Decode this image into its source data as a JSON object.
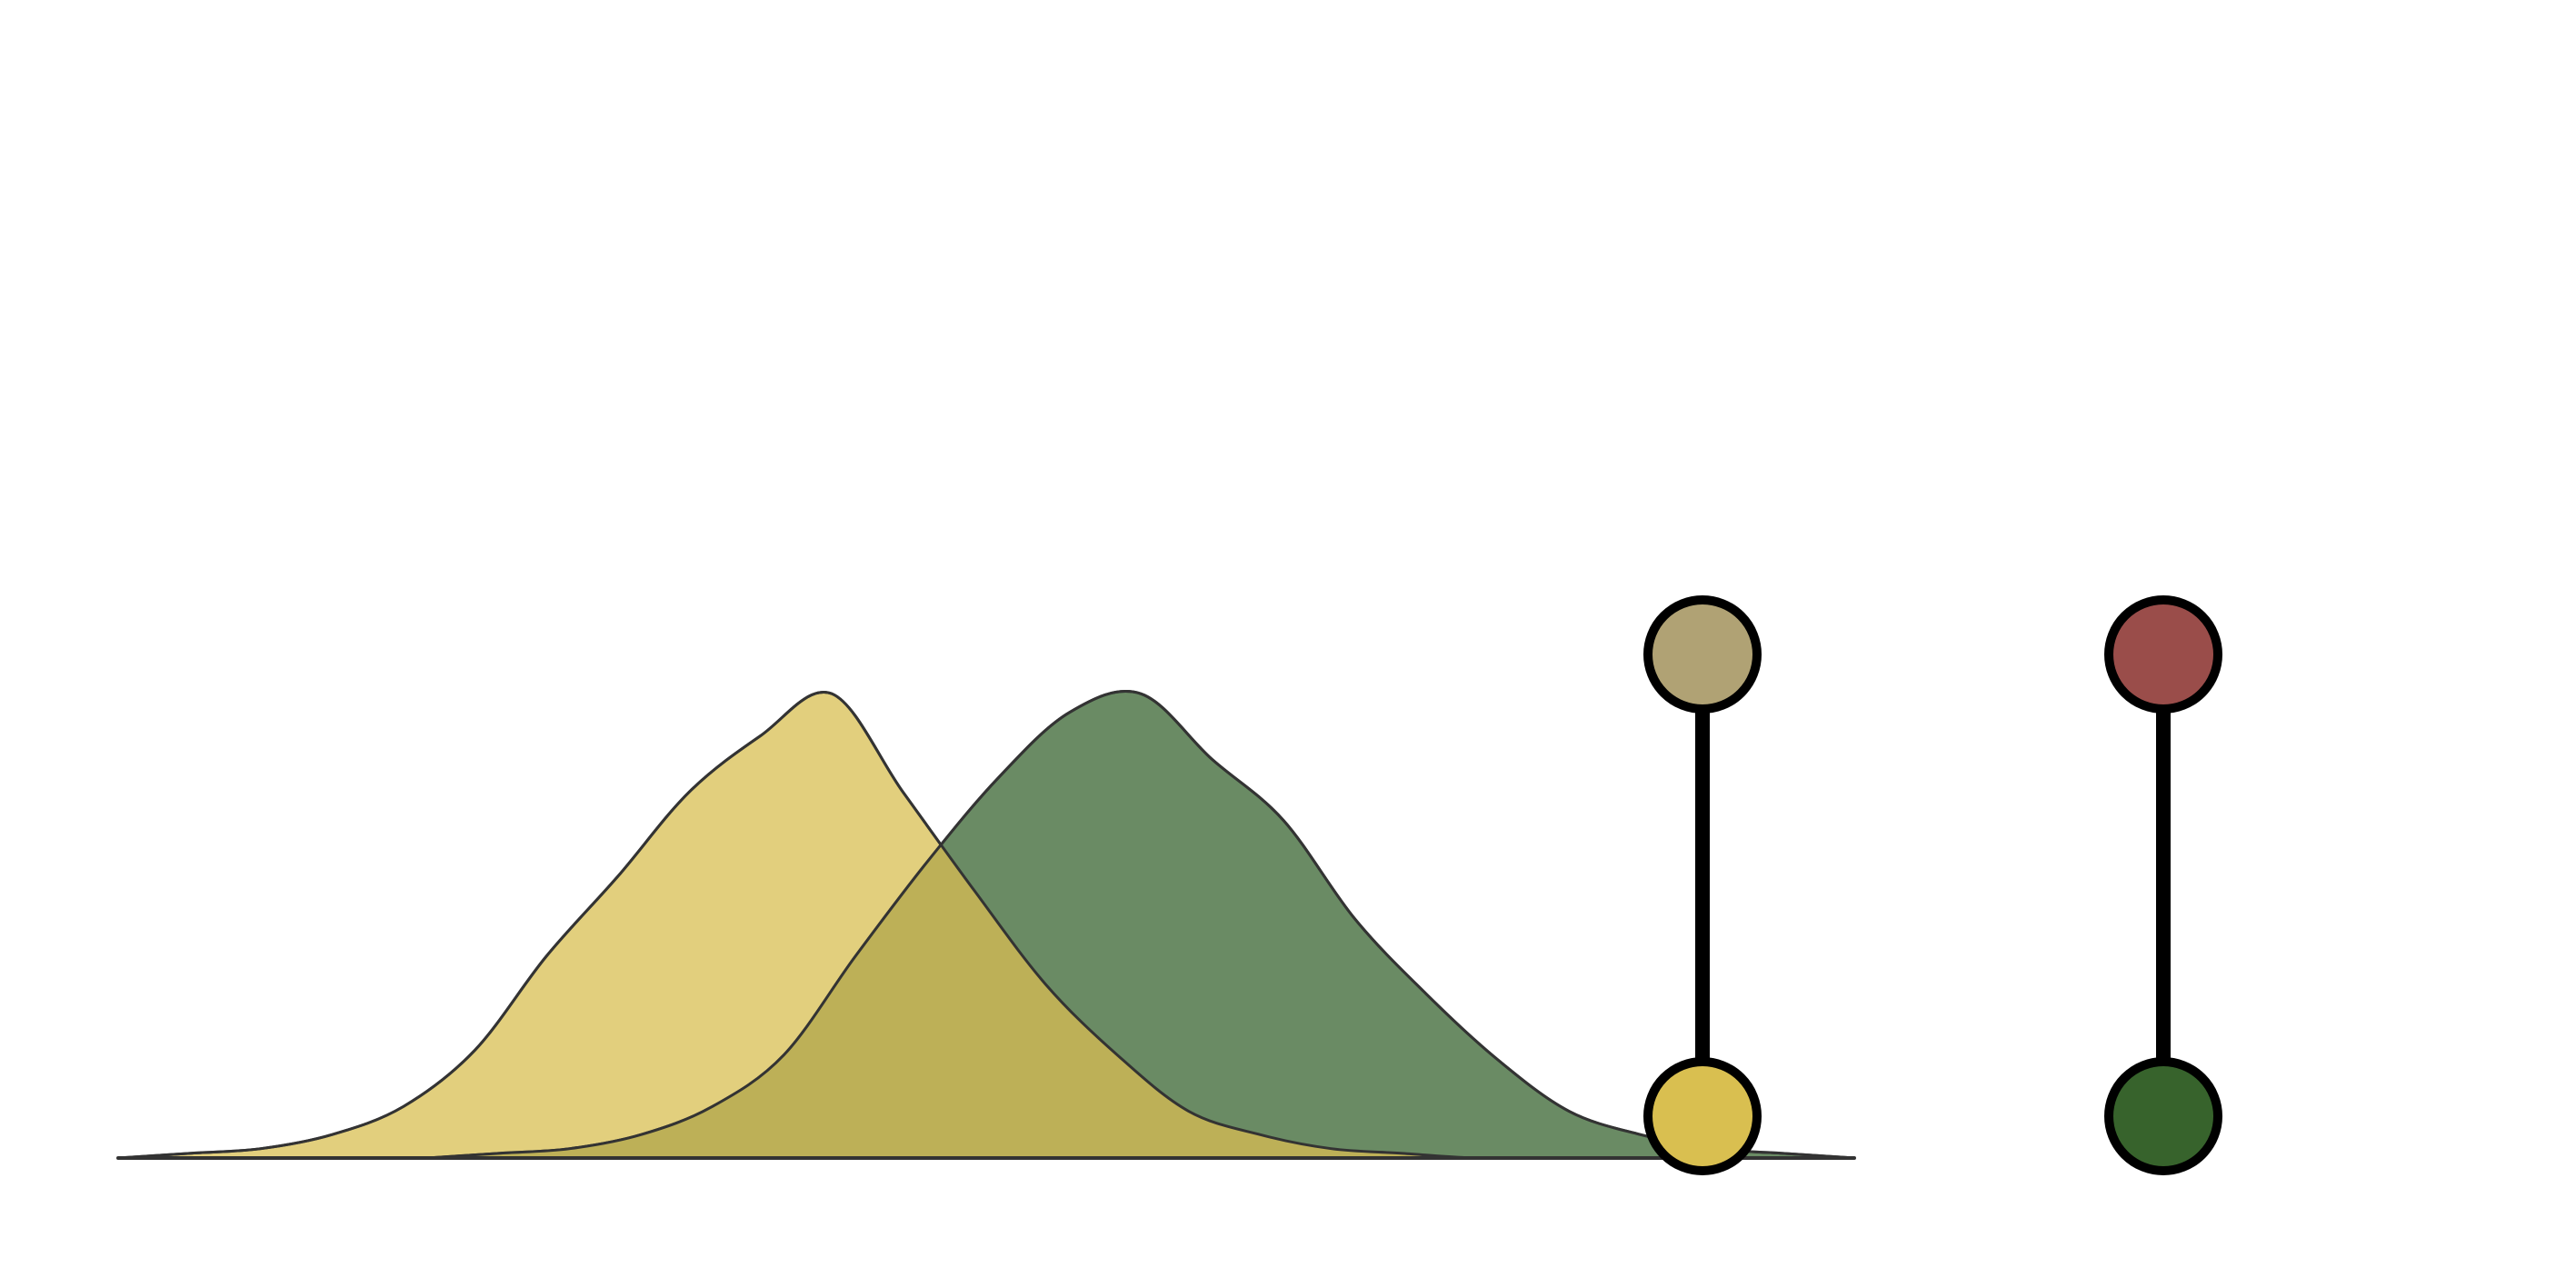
{
  "chart_data": {
    "type": "area",
    "title": "",
    "xlabel": "",
    "ylabel": "",
    "grid": false,
    "legend": "none",
    "series": [
      {
        "color": "#e2cf7d",
        "x": [
          0.0,
          0.05,
          0.1,
          0.15,
          0.2,
          0.25,
          0.3,
          0.35,
          0.4,
          0.45,
          0.5,
          0.55,
          0.6,
          0.65,
          0.7,
          0.75,
          0.8,
          0.85,
          0.9,
          0.95,
          1.0
        ],
        "y": [
          0.0,
          0.01,
          0.02,
          0.05,
          0.11,
          0.23,
          0.43,
          0.6,
          0.78,
          0.9,
          0.99,
          0.78,
          0.57,
          0.37,
          0.22,
          0.1,
          0.05,
          0.02,
          0.01,
          0.0,
          0.0
        ]
      },
      {
        "color": "#6a8b64",
        "x": [
          0.0,
          0.05,
          0.1,
          0.15,
          0.2,
          0.25,
          0.3,
          0.35,
          0.4,
          0.45,
          0.5,
          0.55,
          0.6,
          0.65,
          0.7,
          0.75,
          0.8,
          0.85,
          0.9,
          0.95,
          1.0
        ],
        "y": [
          0.0,
          0.01,
          0.02,
          0.05,
          0.11,
          0.22,
          0.43,
          0.63,
          0.81,
          0.95,
          0.99,
          0.85,
          0.72,
          0.51,
          0.35,
          0.21,
          0.1,
          0.05,
          0.02,
          0.01,
          0.0
        ]
      }
    ],
    "overlap_color": "#bdb057",
    "markers": [
      {
        "top_color": "#b0a274",
        "bottom_color": "#d9bf50"
      },
      {
        "top_color": "#9a4d4a",
        "bottom_color": "#37632c"
      }
    ]
  }
}
